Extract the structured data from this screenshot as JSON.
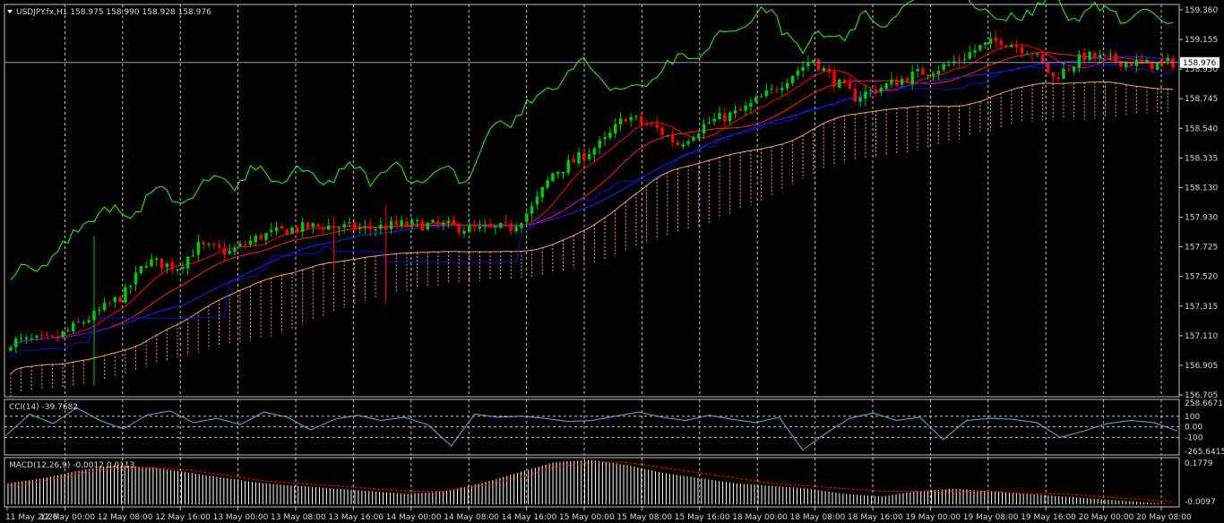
{
  "header": {
    "symbol_line": "USDJPY.fx,H1  158.975 158.990 158.928 158.976"
  },
  "current_price": 158.976,
  "current_price_label": "158.976",
  "colors": {
    "background": "#000000",
    "frame": "#c0c0c0",
    "grid": "#c8c8c8",
    "bull_candle": "#00c800",
    "bear_candle": "#ff0000",
    "ma_fast": "#ff2020",
    "ma_slow": "#2020ff",
    "chikou": "#20ff20",
    "kijun": "#1010d0",
    "tenkan": "#ff0000",
    "cloud": "#f4a460",
    "cci": "#5fb4c8",
    "macd_hist": "#ffffff",
    "macd_signal": "#ff0000",
    "price_line": "#8aa0b8"
  },
  "chart_data": [
    {
      "type": "candlestick",
      "panel": "main",
      "ylim": [
        156.705,
        159.36
      ],
      "y_ticks": [
        "159.360",
        "159.155",
        "158.950",
        "158.745",
        "158.540",
        "158.335",
        "158.130",
        "157.930",
        "157.725",
        "157.520",
        "157.315",
        "157.110",
        "156.905",
        "156.705"
      ],
      "x_tick_labels": [
        "11 May 2026",
        "12 May 00:00",
        "12 May 08:00",
        "12 May 16:00",
        "13 May 00:00",
        "13 May 08:00",
        "13 May 16:00",
        "14 May 00:00",
        "14 May 08:00",
        "14 May 16:00",
        "15 May 00:00",
        "15 May 08:00",
        "15 May 16:00",
        "18 May 00:00",
        "18 May 08:00",
        "18 May 16:00",
        "19 May 00:00",
        "19 May 08:00",
        "19 May 16:00",
        "20 May 00:00",
        "20 May 08:00"
      ],
      "close_path": [
        [
          0,
          157.07
        ],
        [
          8,
          157.08
        ],
        [
          16,
          157.25
        ],
        [
          22,
          157.4
        ],
        [
          26,
          157.62
        ],
        [
          32,
          157.58
        ],
        [
          36,
          157.72
        ],
        [
          42,
          157.68
        ],
        [
          48,
          157.79
        ],
        [
          54,
          157.84
        ],
        [
          60,
          157.86
        ],
        [
          68,
          157.84
        ],
        [
          76,
          157.87
        ],
        [
          84,
          157.86
        ],
        [
          90,
          157.83
        ],
        [
          96,
          157.85
        ],
        [
          100,
          157.98
        ],
        [
          104,
          158.22
        ],
        [
          108,
          158.3
        ],
        [
          114,
          158.44
        ],
        [
          118,
          158.61
        ],
        [
          124,
          158.52
        ],
        [
          128,
          158.42
        ],
        [
          134,
          158.57
        ],
        [
          140,
          158.64
        ],
        [
          146,
          158.78
        ],
        [
          150,
          158.9
        ],
        [
          154,
          159.0
        ],
        [
          158,
          158.85
        ],
        [
          162,
          158.74
        ],
        [
          168,
          158.82
        ],
        [
          174,
          158.9
        ],
        [
          180,
          158.96
        ],
        [
          186,
          159.08
        ],
        [
          190,
          159.13
        ],
        [
          196,
          159.05
        ],
        [
          200,
          158.87
        ],
        [
          206,
          159.02
        ],
        [
          212,
          158.99
        ],
        [
          218,
          158.96
        ],
        [
          223,
          158.976
        ]
      ],
      "notable_wicks": [
        [
          16,
          156.77,
          157.79
        ],
        [
          62,
          157.55,
          157.92
        ],
        [
          72,
          157.33,
          158.0
        ]
      ]
    },
    {
      "type": "line",
      "panel": "cci",
      "title": "CCI(14) -39.7682",
      "ylim": [
        -265.6415,
        258.6671
      ],
      "y_ticks": [
        "258.6671",
        "100",
        "0.00",
        "-100",
        "-265.6415"
      ],
      "levels": [
        100,
        -100
      ],
      "values": [
        -80,
        120,
        30,
        180,
        60,
        -20,
        110,
        150,
        40,
        80,
        20,
        140,
        90,
        -30,
        70,
        110,
        60,
        90,
        20,
        -180,
        120,
        90,
        100,
        80,
        50,
        60,
        100,
        140,
        90,
        60,
        110,
        70,
        40,
        90,
        -220,
        -60,
        80,
        130,
        60,
        90,
        -120,
        60,
        80,
        70,
        40,
        -100,
        -40,
        30,
        60,
        40,
        -39.77
      ]
    },
    {
      "type": "bar",
      "panel": "macd",
      "title": "MACD(12,26,9) -0.0012 0.0113",
      "ylim": [
        -0.0097,
        0.1779
      ],
      "y_ticks": [
        "0.1779",
        "-0.0097"
      ],
      "histogram": [
        0.08,
        0.1,
        0.13,
        0.15,
        0.14,
        0.12,
        0.1,
        0.08,
        0.07,
        0.06,
        0.05,
        0.04,
        0.05,
        0.08,
        0.12,
        0.16,
        0.17,
        0.15,
        0.12,
        0.1,
        0.08,
        0.07,
        0.06,
        0.04,
        0.03,
        0.05,
        0.06,
        0.05,
        0.04,
        0.03,
        0.02,
        0.01,
        0.0
      ],
      "signal": [
        0.07,
        0.09,
        0.12,
        0.14,
        0.14,
        0.13,
        0.11,
        0.09,
        0.08,
        0.07,
        0.06,
        0.05,
        0.05,
        0.07,
        0.1,
        0.14,
        0.16,
        0.16,
        0.14,
        0.12,
        0.1,
        0.08,
        0.07,
        0.06,
        0.05,
        0.05,
        0.05,
        0.05,
        0.04,
        0.04,
        0.03,
        0.02,
        0.01
      ]
    }
  ]
}
